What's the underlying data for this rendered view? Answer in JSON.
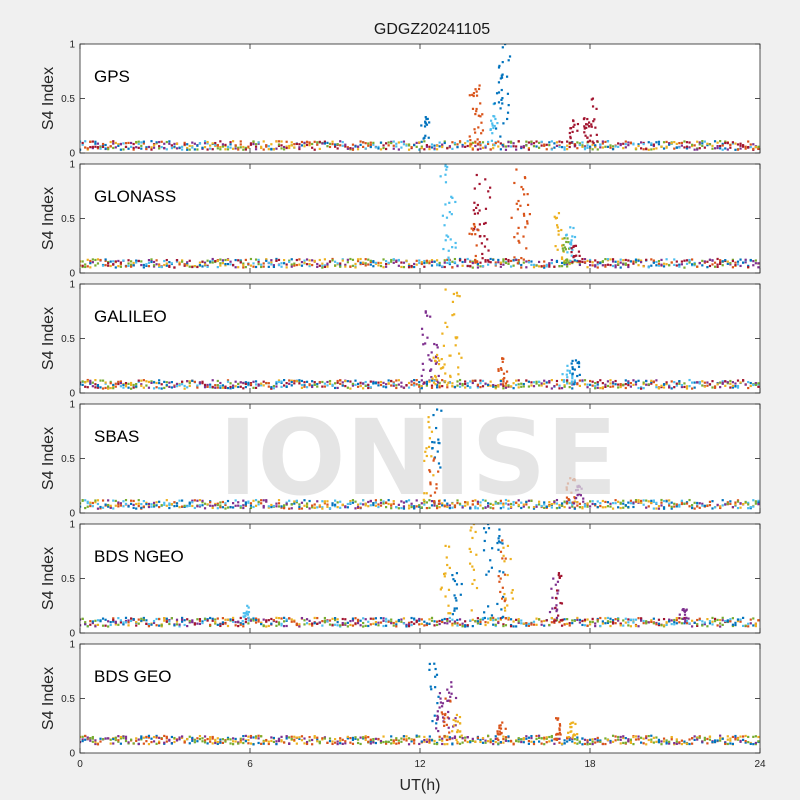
{
  "chart_data": {
    "type": "scatter",
    "title": "GDGZ20241105",
    "xlabel": "UT(h)",
    "ylabel": "S4 Index",
    "xlim": [
      0,
      24
    ],
    "ylim": [
      0,
      1
    ],
    "xticks": [
      "0",
      "6",
      "12",
      "18",
      "24"
    ],
    "yticks": [
      "0",
      "0.5",
      "1"
    ],
    "watermark": "IONISE",
    "series_colors": [
      "#0072BD",
      "#D95319",
      "#EDB120",
      "#7E2F8E",
      "#77AC30",
      "#4DBEEE",
      "#A2142F"
    ],
    "panels": [
      {
        "name": "GPS",
        "baseline": 0.07,
        "active_series": [
          0,
          1,
          2,
          3,
          4,
          5,
          6
        ],
        "spikes": [
          {
            "series": 0,
            "x": 12.2,
            "peak": 0.33
          },
          {
            "series": 1,
            "x": 13.9,
            "peak": 0.55
          },
          {
            "series": 1,
            "x": 14.1,
            "peak": 0.62
          },
          {
            "series": 5,
            "x": 14.6,
            "peak": 0.45
          },
          {
            "series": 0,
            "x": 14.8,
            "peak": 0.8
          },
          {
            "series": 0,
            "x": 15.0,
            "peak": 1.0
          },
          {
            "series": 6,
            "x": 17.4,
            "peak": 0.3
          },
          {
            "series": 6,
            "x": 17.8,
            "peak": 0.32
          },
          {
            "series": 6,
            "x": 18.1,
            "peak": 0.5
          }
        ]
      },
      {
        "name": "GLONASS",
        "baseline": 0.09,
        "active_series": [
          0,
          1,
          2,
          3,
          4,
          5,
          6
        ],
        "spikes": [
          {
            "series": 5,
            "x": 12.9,
            "peak": 1.0
          },
          {
            "series": 5,
            "x": 13.1,
            "peak": 0.7
          },
          {
            "series": 6,
            "x": 14.0,
            "peak": 0.9
          },
          {
            "series": 6,
            "x": 14.3,
            "peak": 0.86
          },
          {
            "series": 1,
            "x": 13.9,
            "peak": 0.45
          },
          {
            "series": 1,
            "x": 15.4,
            "peak": 0.95
          },
          {
            "series": 1,
            "x": 15.7,
            "peak": 0.88
          },
          {
            "series": 2,
            "x": 16.9,
            "peak": 0.55
          },
          {
            "series": 4,
            "x": 17.1,
            "peak": 0.32
          },
          {
            "series": 5,
            "x": 17.3,
            "peak": 0.42
          },
          {
            "series": 6,
            "x": 17.5,
            "peak": 0.25
          }
        ]
      },
      {
        "name": "GALILEO",
        "baseline": 0.08,
        "active_series": [
          0,
          1,
          2,
          3,
          4,
          5,
          6
        ],
        "spikes": [
          {
            "series": 3,
            "x": 12.2,
            "peak": 0.75
          },
          {
            "series": 3,
            "x": 12.5,
            "peak": 0.45
          },
          {
            "series": 2,
            "x": 12.9,
            "peak": 0.95
          },
          {
            "series": 2,
            "x": 13.3,
            "peak": 0.92
          },
          {
            "series": 2,
            "x": 12.6,
            "peak": 0.35
          },
          {
            "series": 1,
            "x": 14.9,
            "peak": 0.32
          },
          {
            "series": 5,
            "x": 17.2,
            "peak": 0.25
          },
          {
            "series": 0,
            "x": 17.5,
            "peak": 0.3
          }
        ]
      },
      {
        "name": "SBAS",
        "baseline": 0.08,
        "active_series": [
          0,
          1,
          2,
          3,
          4,
          5
        ],
        "spikes": [
          {
            "series": 0,
            "x": 12.6,
            "peak": 0.95
          },
          {
            "series": 2,
            "x": 12.3,
            "peak": 0.88
          },
          {
            "series": 1,
            "x": 12.5,
            "peak": 0.5
          },
          {
            "series": 1,
            "x": 17.3,
            "peak": 0.32
          },
          {
            "series": 3,
            "x": 17.6,
            "peak": 0.25
          }
        ]
      },
      {
        "name": "BDS NGEO",
        "baseline": 0.1,
        "active_series": [
          0,
          1,
          2,
          3,
          4,
          5,
          6
        ],
        "spikes": [
          {
            "series": 2,
            "x": 12.9,
            "peak": 0.8
          },
          {
            "series": 0,
            "x": 13.3,
            "peak": 0.55
          },
          {
            "series": 2,
            "x": 13.9,
            "peak": 1.0
          },
          {
            "series": 0,
            "x": 14.4,
            "peak": 1.0
          },
          {
            "series": 0,
            "x": 14.8,
            "peak": 0.95
          },
          {
            "series": 1,
            "x": 14.9,
            "peak": 0.85
          },
          {
            "series": 2,
            "x": 15.1,
            "peak": 0.8
          },
          {
            "series": 3,
            "x": 16.7,
            "peak": 0.5
          },
          {
            "series": 6,
            "x": 16.9,
            "peak": 0.55
          },
          {
            "series": 5,
            "x": 5.9,
            "peak": 0.25
          },
          {
            "series": 3,
            "x": 21.3,
            "peak": 0.22
          }
        ]
      },
      {
        "name": "BDS GEO",
        "baseline": 0.12,
        "active_series": [
          0,
          1,
          2,
          3,
          4
        ],
        "spikes": [
          {
            "series": 0,
            "x": 12.5,
            "peak": 0.82
          },
          {
            "series": 3,
            "x": 12.7,
            "peak": 0.55
          },
          {
            "series": 1,
            "x": 12.9,
            "peak": 0.5
          },
          {
            "series": 3,
            "x": 13.1,
            "peak": 0.65
          },
          {
            "series": 2,
            "x": 13.3,
            "peak": 0.35
          },
          {
            "series": 1,
            "x": 14.9,
            "peak": 0.28
          },
          {
            "series": 1,
            "x": 16.8,
            "peak": 0.32
          },
          {
            "series": 2,
            "x": 17.4,
            "peak": 0.28
          }
        ]
      }
    ]
  }
}
